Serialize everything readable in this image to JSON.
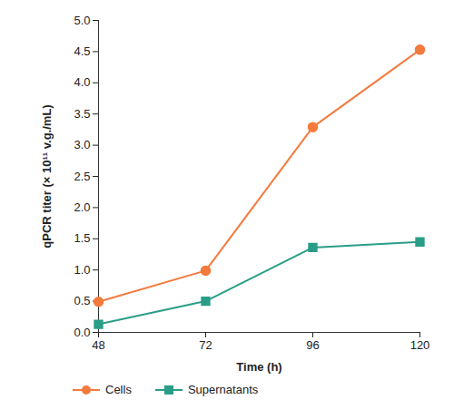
{
  "chart_data": {
    "type": "line",
    "x_label": "Time (h)",
    "y_label": "qPCR titer (× 10¹¹ v.g./mL)",
    "x": [
      48,
      72,
      96,
      120
    ],
    "series": [
      {
        "name": "Cells",
        "color": "#f37a3d",
        "marker": "circle",
        "values": [
          0.49,
          0.99,
          3.29,
          4.53
        ]
      },
      {
        "name": "Supernatants",
        "color": "#2a9d87",
        "marker": "square",
        "values": [
          0.13,
          0.5,
          1.36,
          1.45
        ]
      }
    ],
    "xlim": [
      48,
      120
    ],
    "xticks": [
      48,
      72,
      96,
      120
    ],
    "ylim": [
      0,
      5
    ],
    "yticks": [
      {
        "value": 0,
        "label": "0.0"
      },
      0.5,
      {
        "value": 1,
        "label": "1.0"
      },
      1.5,
      {
        "value": 2,
        "label": "2.0"
      },
      2.5,
      {
        "value": 3,
        "label": "3.0"
      },
      3.5,
      {
        "value": 4,
        "label": "4.0"
      },
      4.5,
      {
        "value": 5,
        "label": "5.0"
      }
    ],
    "legend": "bottom-left",
    "grid": false
  }
}
